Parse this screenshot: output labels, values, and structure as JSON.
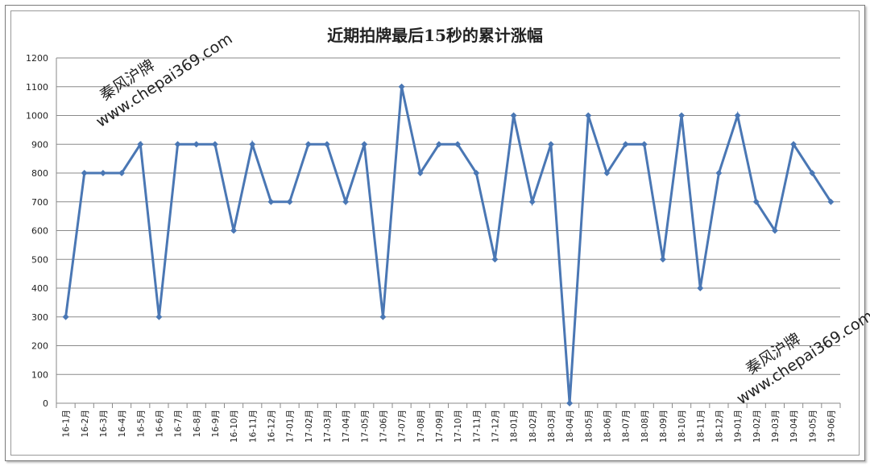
{
  "chart_data": {
    "type": "line",
    "title": "近期拍牌最后15秒的累计涨幅",
    "xlabel": "",
    "ylabel": "",
    "ylim": [
      0,
      1200
    ],
    "yticks": [
      0,
      100,
      200,
      300,
      400,
      500,
      600,
      700,
      800,
      900,
      1000,
      1100,
      1200
    ],
    "grid": true,
    "categories": [
      "16-1月",
      "16-2月",
      "16-3月",
      "16-4月",
      "16-5月",
      "16-6月",
      "16-7月",
      "16-8月",
      "16-9月",
      "16-10月",
      "16-11月",
      "16-12月",
      "17-01月",
      "17-02月",
      "17-03月",
      "17-04月",
      "17-05月",
      "17-06月",
      "17-07月",
      "17-08月",
      "17-09月",
      "17-10月",
      "17-11月",
      "17-12月",
      "18-01月",
      "18-02月",
      "18-03月",
      "18-04月",
      "18-05月",
      "18-06月",
      "18-07月",
      "18-08月",
      "18-09月",
      "18-10月",
      "18-11月",
      "18-12月",
      "19-01月",
      "19-02月",
      "19-03月",
      "19-04月",
      "19-05月",
      "19-06月"
    ],
    "values": [
      300,
      800,
      800,
      800,
      900,
      300,
      900,
      900,
      900,
      600,
      900,
      700,
      700,
      900,
      900,
      700,
      900,
      300,
      1100,
      800,
      900,
      900,
      800,
      500,
      1000,
      700,
      900,
      0,
      1000,
      800,
      900,
      900,
      500,
      1000,
      400,
      800,
      1000,
      700,
      600,
      900,
      800,
      700
    ],
    "color": "#4a77b4"
  },
  "watermark": {
    "name": "秦风沪牌",
    "url": "www.chepai369.com"
  }
}
